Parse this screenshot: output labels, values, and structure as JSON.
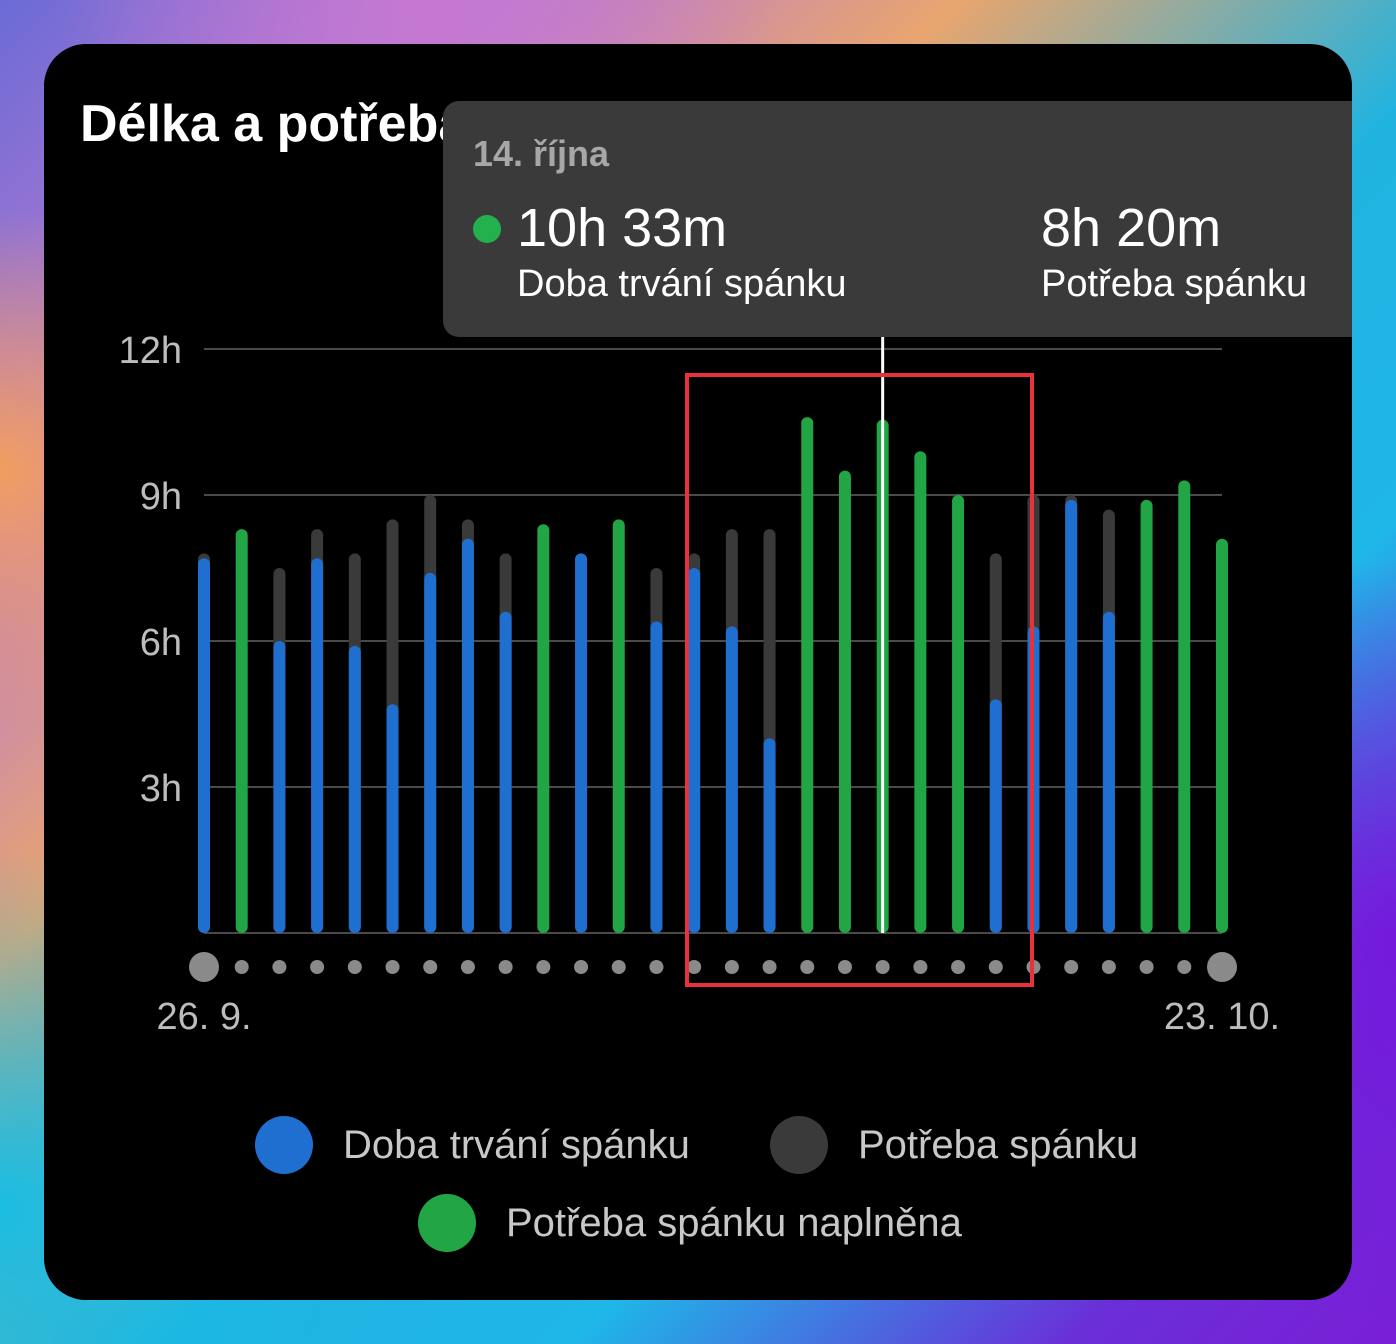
{
  "title": "Délka a potřeba spánku",
  "tooltip": {
    "date": "14. října",
    "duration_value": "10h 33m",
    "duration_label": "Doba trvání spánku",
    "need_value": "8h 20m",
    "need_label": "Potřeba spánku"
  },
  "colors": {
    "duration": "#1e6fd0",
    "need": "#3a3a3a",
    "need_met": "#22a544",
    "highlight": "#e8323a"
  },
  "legend": [
    {
      "label": "Doba trvání spánku",
      "color": "#1e6fd0"
    },
    {
      "label": "Potřeba spánku",
      "color": "#3a3a3a"
    },
    {
      "label": "Potřeba spánku naplněna",
      "color": "#22a544"
    }
  ],
  "chart_data": {
    "type": "bar",
    "title": "Délka a potřeba spánku",
    "xlabel": "",
    "ylabel": "",
    "ylim": [
      0,
      12
    ],
    "y_ticks": [
      "3h",
      "6h",
      "9h",
      "12h"
    ],
    "y_tick_values": [
      3,
      6,
      9,
      12
    ],
    "x_tick_labels": [
      "26. 9.",
      "23. 10."
    ],
    "categories": [
      "26.9.",
      "27.9.",
      "28.9.",
      "29.9.",
      "30.9.",
      "1.10.",
      "2.10.",
      "3.10.",
      "4.10.",
      "5.10.",
      "6.10.",
      "7.10.",
      "8.10.",
      "9.10.",
      "10.10.",
      "11.10.",
      "12.10.",
      "13.10.",
      "14.10.",
      "15.10.",
      "16.10.",
      "17.10.",
      "18.10.",
      "19.10.",
      "20.10.",
      "21.10.",
      "22.10.",
      "23.10."
    ],
    "series": [
      {
        "name": "Doba trvání spánku",
        "values": [
          7.7,
          8.3,
          6.0,
          7.7,
          5.9,
          4.7,
          7.4,
          8.1,
          6.6,
          8.4,
          7.8,
          8.5,
          6.4,
          7.5,
          6.3,
          4.0,
          10.6,
          9.5,
          10.55,
          9.9,
          9.0,
          4.8,
          6.3,
          8.9,
          6.6,
          8.9,
          9.3,
          8.1
        ]
      },
      {
        "name": "Potřeba spánku",
        "values": [
          7.8,
          8.3,
          7.5,
          8.3,
          7.8,
          8.5,
          9.0,
          8.5,
          7.8,
          8.4,
          7.8,
          8.5,
          7.5,
          7.8,
          8.3,
          8.3,
          8.3,
          8.3,
          8.33,
          8.3,
          8.3,
          7.8,
          9.0,
          9.0,
          8.7,
          8.9,
          9.3,
          8.1
        ]
      },
      {
        "name": "Potřeba spánku naplněna",
        "flags": [
          false,
          true,
          false,
          false,
          false,
          false,
          false,
          false,
          false,
          true,
          false,
          true,
          false,
          false,
          false,
          false,
          true,
          true,
          true,
          true,
          true,
          false,
          false,
          false,
          false,
          true,
          true,
          true
        ]
      }
    ],
    "selected_index": 18,
    "grid": true,
    "legend_position": "bottom"
  }
}
